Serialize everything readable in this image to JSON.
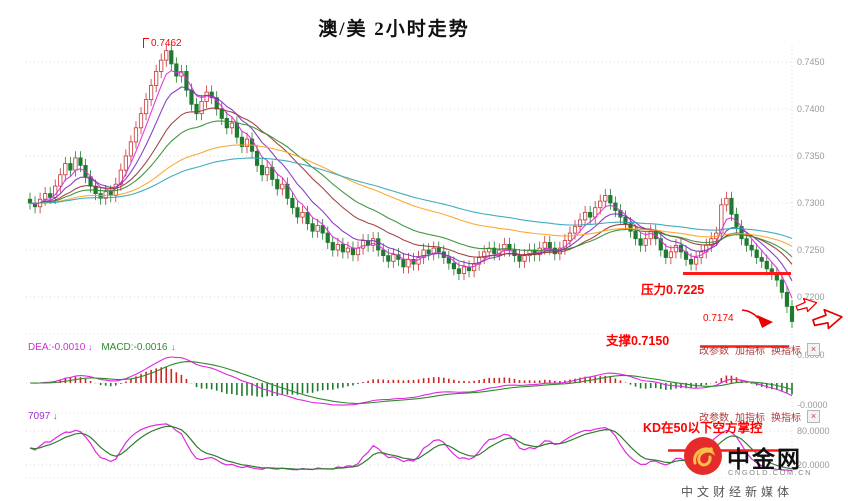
{
  "title": "澳/美 2小时走势",
  "annotations": {
    "peak_label": "0.7462",
    "resistance_label": "压力0.7225",
    "current_price_label": "0.7174",
    "support_label": "支撑0.7150",
    "kd_note": "KD在50以下空方掌控"
  },
  "macd_header": {
    "dea_label": "DEA:-0.0010",
    "dea_arrow": "↓",
    "macd_label": "MACD:-0.0016",
    "macd_arrow": "↓"
  },
  "kd_header": {
    "label": "7097",
    "arrow": "↓"
  },
  "panel_controls": {
    "items": [
      "改参数",
      "加指标",
      "换指标"
    ],
    "close_label": "×"
  },
  "axes": {
    "price_ticks": [
      "0.7450",
      "0.7400",
      "0.7350",
      "0.7300",
      "0.7250",
      "0.7200"
    ],
    "macd_ticks": [
      "0.0000",
      "-0.0000"
    ],
    "kd_ticks": [
      "80.0000",
      "20.0000"
    ]
  },
  "logo": {
    "name": "中金网",
    "domain": "CNGOLD.COM.CN",
    "tagline": "中文财经新媒体"
  },
  "chart_data": {
    "type": "candlestick",
    "instrument": "澳/美 (AUD/USD)",
    "timeframe": "2小时",
    "title": "澳/美 2小时走势",
    "price_axis_range": [
      0.72,
      0.745
    ],
    "peak_high": 0.7462,
    "resistance_level": 0.7225,
    "support_level": 0.715,
    "current_price": 0.7174,
    "closes": [
      0.73,
      0.7296,
      0.7304,
      0.731,
      0.7306,
      0.7318,
      0.733,
      0.7342,
      0.7335,
      0.7348,
      0.734,
      0.7328,
      0.7318,
      0.731,
      0.7305,
      0.7312,
      0.7308,
      0.732,
      0.7335,
      0.735,
      0.7365,
      0.738,
      0.7395,
      0.741,
      0.7425,
      0.744,
      0.7452,
      0.7462,
      0.7448,
      0.7435,
      0.744,
      0.742,
      0.7405,
      0.7395,
      0.7408,
      0.7418,
      0.7412,
      0.74,
      0.739,
      0.738,
      0.7385,
      0.737,
      0.736,
      0.7368,
      0.7355,
      0.734,
      0.733,
      0.7338,
      0.7325,
      0.7315,
      0.732,
      0.7305,
      0.7295,
      0.7285,
      0.729,
      0.7278,
      0.727,
      0.7276,
      0.7268,
      0.7258,
      0.725,
      0.7256,
      0.7248,
      0.7252,
      0.7245,
      0.7252,
      0.726,
      0.7255,
      0.7262,
      0.725,
      0.7244,
      0.7238,
      0.7245,
      0.724,
      0.7232,
      0.724,
      0.7235,
      0.7242,
      0.725,
      0.7246,
      0.7252,
      0.7248,
      0.7242,
      0.7236,
      0.723,
      0.7225,
      0.7232,
      0.7228,
      0.7235,
      0.7242,
      0.7248,
      0.7252,
      0.7246,
      0.725,
      0.7256,
      0.725,
      0.7244,
      0.7238,
      0.7244,
      0.725,
      0.7245,
      0.7252,
      0.7258,
      0.7252,
      0.7246,
      0.7252,
      0.726,
      0.7268,
      0.7275,
      0.7282,
      0.729,
      0.7285,
      0.7295,
      0.7302,
      0.7308,
      0.73,
      0.7292,
      0.7285,
      0.7278,
      0.727,
      0.7262,
      0.7255,
      0.7262,
      0.727,
      0.7262,
      0.725,
      0.7242,
      0.7248,
      0.7255,
      0.7248,
      0.724,
      0.7235,
      0.7242,
      0.7248,
      0.7255,
      0.7262,
      0.7268,
      0.7298,
      0.7305,
      0.7288,
      0.7275,
      0.7262,
      0.7255,
      0.725,
      0.7242,
      0.7238,
      0.723,
      0.7225,
      0.7218,
      0.7205,
      0.719,
      0.7174
    ],
    "ma_periods": [
      5,
      10,
      20,
      30,
      60,
      90
    ],
    "ma_colors": [
      "#e028e0",
      "#7b2fbe",
      "#9a3333",
      "#2e8b2e",
      "#ffa020",
      "#2fa3b8"
    ],
    "macd_values": {
      "dea": -0.001,
      "macd": -0.0016
    },
    "kd_levels": [
      80,
      20
    ],
    "colors": {
      "up": "#c83232",
      "down": "#1e7a2e",
      "annotation": "#ff0000",
      "grid": "#d8d8d8",
      "axis_text": "#999999",
      "macd_pos": "#d22222",
      "macd_neg": "#1e7a2e",
      "dif_line": "#e028e0",
      "dea_line": "#2e8b2e",
      "k_line": "#e028e0",
      "d_line": "#2e7d2e"
    }
  }
}
